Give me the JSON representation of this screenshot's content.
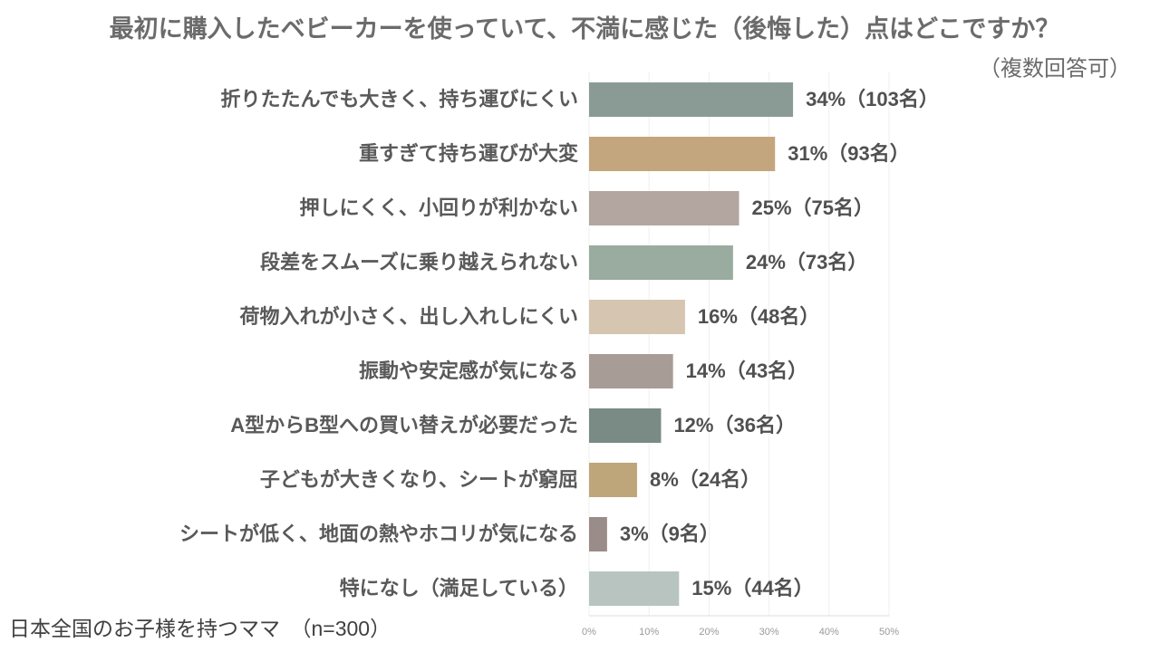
{
  "chart_data": {
    "type": "bar",
    "orientation": "horizontal",
    "title": "最初に購入したベビーカーを使っていて、不満に感じた（後悔した）点はどこですか？",
    "subtitle": "（複数回答可）",
    "note": "日本全国のお子様を持つママ　（n=300）",
    "categories": [
      "折りたたんでも大きく、持ち運びにくい",
      "重すぎて持ち運びが大変",
      "押しにくく、小回りが利かない",
      "段差をスムーズに乗り越えられない",
      "荷物入れが小さく、出し入れしにくい",
      "振動や安定感が気になる",
      "A型からB型への買い替えが必要だった",
      "子どもが大きくなり、シートが窮屈",
      "シートが低く、地面の熱やホコリが気になる",
      "特になし（満足している）"
    ],
    "values": [
      34,
      31,
      25,
      24,
      16,
      14,
      12,
      8,
      3,
      15
    ],
    "value_labels": [
      "34%（103名）",
      "31%（93名）",
      "25%（75名）",
      "24%（73名）",
      "16%（48名）",
      "14%（43名）",
      "12%（36名）",
      "8%（24名）",
      "3%（9名）",
      "15%（44名）"
    ],
    "colors": [
      "#8a9b96",
      "#c4a67e",
      "#b3a6a0",
      "#9aaca0",
      "#d6c6b1",
      "#a89c96",
      "#7a8a84",
      "#bfa57a",
      "#9a8c88",
      "#b8c4bf"
    ],
    "xlim": [
      0,
      50
    ],
    "xticks": [
      {
        "value": 0,
        "label": "0%"
      },
      {
        "value": 10,
        "label": "10%"
      },
      {
        "value": 20,
        "label": "20%"
      },
      {
        "value": 30,
        "label": "30%"
      },
      {
        "value": 40,
        "label": "40%"
      },
      {
        "value": 50,
        "label": "50%"
      }
    ],
    "grid": true
  }
}
